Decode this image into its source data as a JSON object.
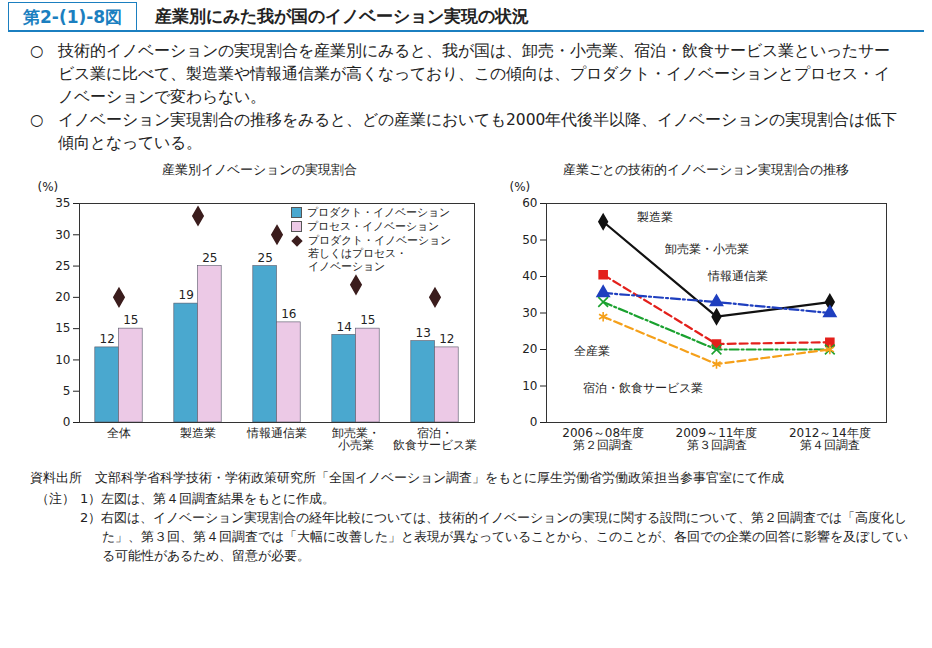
{
  "figure_label": "第2-(1)-8図",
  "title": "産業別にみた我が国のイノベーション実現の状況",
  "bullet_mark": "○",
  "bullets": [
    "技術的イノベーションの実現割合を産業別にみると、我が国は、卸売・小売業、宿泊・飲食サービス業といったサービス業に比べて、製造業や情報通信業が高くなっており、この傾向は、プロダクト・イノベーションとプロセス・イノベーションで変わらない。",
    "イノベーション実現割合の推移をみると、どの産業においても2000年代後半以降、イノベーションの実現割合は低下傾向となっている。"
  ],
  "source": "資料出所　文部科学省科学技術・学術政策研究所「全国イノベーション調査」をもとに厚生労働省労働政策担当参事官室にて作成",
  "notes_label": "（注）",
  "notes": [
    "1）左図は、第４回調査結果をもとに作成。",
    "2）右図は、イノベーション実現割合の経年比較については、技術的イノベーションの実現に関する設問について、第２回調査では「高度化した」、第３回、第４回調査では「大幅に改善した」と表現が異なっていることから、このことが、各回での企業の回答に影響を及ぼしている可能性があるため、留意が必要。"
  ],
  "chart_data": [
    {
      "type": "bar",
      "title": "産業別イノベーションの実現割合",
      "y_label": "(%)",
      "categories": [
        "全体",
        "製造業",
        "情報通信業",
        "卸売業・\n小売業",
        "宿泊・\n飲食サービス業"
      ],
      "series": [
        {
          "name": "プロダクト・イノベーション",
          "color": "#4aa8cf",
          "values": [
            12,
            19,
            25,
            14,
            13
          ],
          "data_labels": true
        },
        {
          "name": "プロセス・イノベーション",
          "color": "#ecc9e6",
          "values": [
            15,
            25,
            16,
            15,
            12
          ],
          "data_labels": true
        },
        {
          "name": "プロダクト・イノベーション\n若しくはプロセス・\nイノベーション",
          "type": "scatter",
          "marker": "diamond",
          "color": "#3b1d1d",
          "values": [
            20,
            33,
            30,
            22,
            20
          ]
        }
      ],
      "ylim": [
        0,
        35
      ],
      "yticks": [
        0,
        5,
        10,
        15,
        20,
        25,
        30,
        35
      ],
      "legend": "top-right"
    },
    {
      "type": "line",
      "title": "産業ごとの技術的イノベーション実現割合の推移",
      "y_label": "(%)",
      "categories": [
        "2006～08年度\n第２回調査",
        "2009～11年度\n第３回調査",
        "2012～14年度\n第４回調査"
      ],
      "series": [
        {
          "name": "製造業",
          "color": "#111111",
          "line_style": "solid",
          "marker": "diamond",
          "values": [
            55,
            29,
            33
          ]
        },
        {
          "name": "卸売業・小売業",
          "color": "#e3201b",
          "line_style": "dashed",
          "marker": "square",
          "values": [
            40.5,
            21.5,
            22
          ]
        },
        {
          "name": "情報通信業",
          "color": "#1f3fbf",
          "line_style": "dashdot",
          "marker": "triangle",
          "values": [
            35.5,
            33,
            30
          ]
        },
        {
          "name": "全産業",
          "color": "#1aa12f",
          "line_style": "dashdot",
          "marker": "x",
          "values": [
            33,
            20,
            20
          ]
        },
        {
          "name": "宿泊・飲食サービス業",
          "color": "#f5a01a",
          "line_style": "dashed",
          "marker": "asterisk",
          "values": [
            29,
            16,
            20
          ]
        }
      ],
      "ylim": [
        0,
        60
      ],
      "yticks": [
        0,
        10,
        20,
        30,
        40,
        50,
        60
      ]
    }
  ]
}
